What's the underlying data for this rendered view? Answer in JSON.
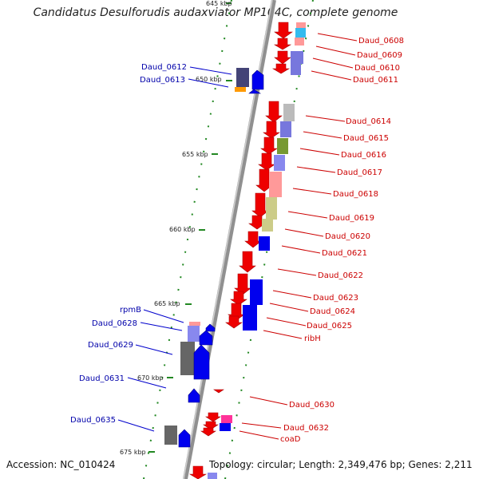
{
  "title": "Candidatus Desulforudis audaxviator MP104C, complete genome",
  "footer": {
    "accession": "Accession: NC_010424",
    "topology": "Topology: circular; Length: 2,349,476 bp; Genes: 2,211"
  },
  "kbp_labels": [
    "645 kbp",
    "650 kbp",
    "655 kbp",
    "660 kbp",
    "665 kbp",
    "670 kbp",
    "675 kbp"
  ],
  "genes_forward": [
    "Daud_0612",
    "Daud_0613",
    "rpmB",
    "Daud_0628",
    "Daud_0629",
    "Daud_0631",
    "Daud_0635"
  ],
  "genes_reverse": [
    "Daud_0608",
    "Daud_0609",
    "Daud_0610",
    "Daud_0611",
    "Daud_0614",
    "Daud_0615",
    "Daud_0616",
    "Daud_0617",
    "Daud_0618",
    "Daud_0619",
    "Daud_0620",
    "Daud_0621",
    "Daud_0622",
    "Daud_0623",
    "Daud_0624",
    "Daud_0625",
    "ribH",
    "Daud_0630",
    "Daud_0632",
    "coaD"
  ],
  "colors": {
    "forward_gene": "#0000ee",
    "reverse_gene": "#ee0000",
    "forward_label": "#0000aa",
    "reverse_label": "#cc0000",
    "backbone": "#808080",
    "tick": "#228822"
  }
}
